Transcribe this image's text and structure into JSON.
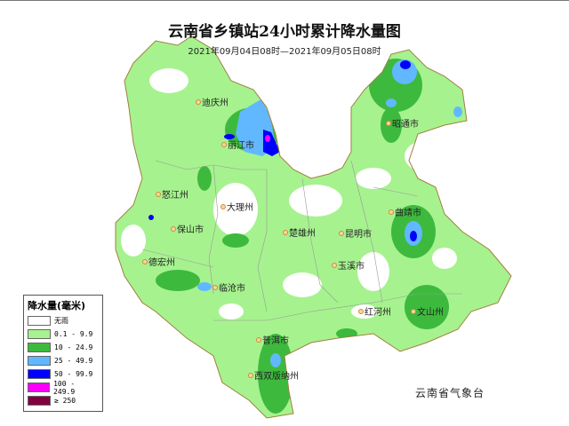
{
  "title": "云南省乡镇站24小时累计降水量图",
  "subtitle": "2021年09月04日08时—2021年09月05日08时",
  "credit": "云南省气象台",
  "legend": {
    "title": "降水量(毫米)",
    "items": [
      {
        "label": "无雨",
        "color": "#ffffff"
      },
      {
        "label": "0.1 - 9.9",
        "color": "#a6f28f"
      },
      {
        "label": "10 - 24.9",
        "color": "#3dba3d"
      },
      {
        "label": "25 - 49.9",
        "color": "#61b8ff"
      },
      {
        "label": "50 - 99.9",
        "color": "#0000ff"
      },
      {
        "label": "100 - 249.9",
        "color": "#fa00fa"
      },
      {
        "label": "≥ 250",
        "color": "#800040"
      }
    ]
  },
  "cities": [
    "迪庆州",
    "丽江市",
    "怒江州",
    "大理州",
    "保山市",
    "楚雄州",
    "昆明市",
    "曲靖市",
    "昭通市",
    "德宏州",
    "临沧市",
    "玉溪市",
    "红河州",
    "文山州",
    "普洱市",
    "西双版纳州"
  ]
}
